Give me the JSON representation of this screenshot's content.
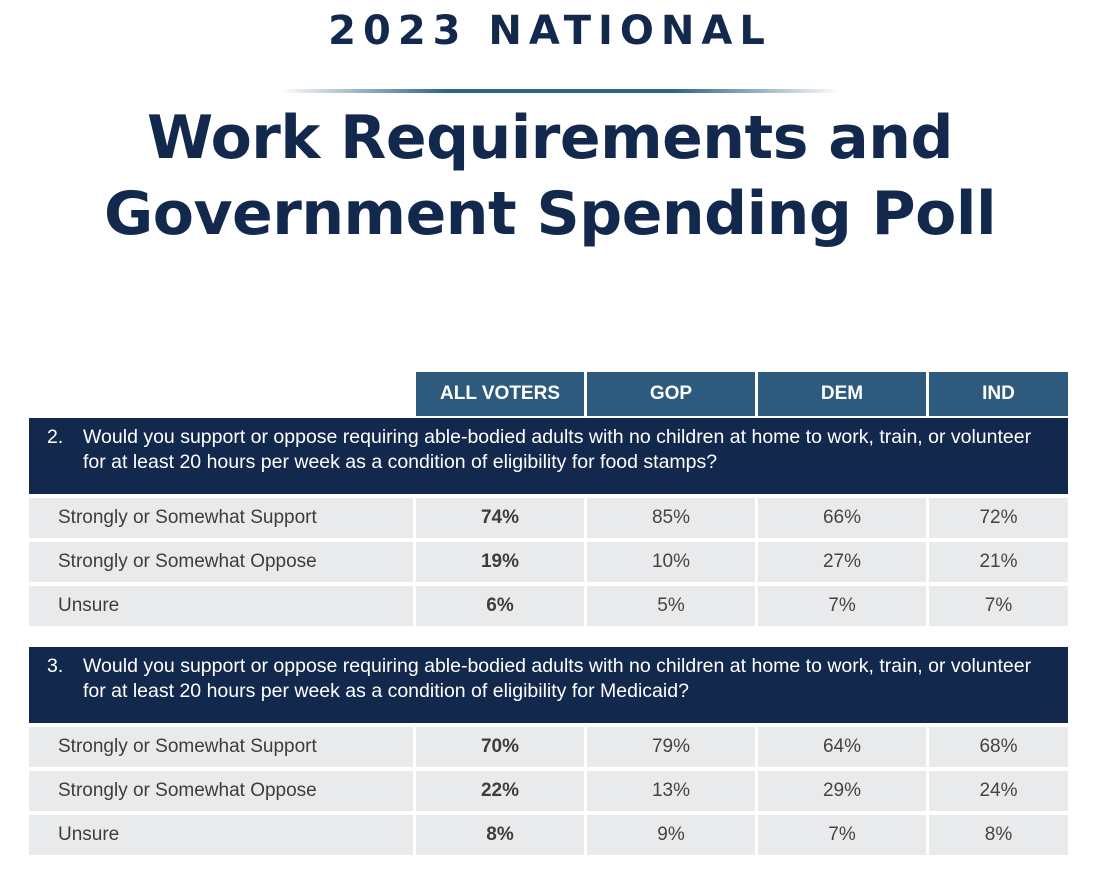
{
  "header": {
    "kicker": "2023 NATIONAL",
    "title_line1": "Work Requirements and",
    "title_line2": "Government Spending Poll"
  },
  "columns": [
    "ALL VOTERS",
    "GOP",
    "DEM",
    "IND"
  ],
  "questions": [
    {
      "number": "2.",
      "text": "Would you support or oppose requiring able-bodied adults with no children at home to work, train, or volunteer for at least 20 hours per week as a condition of eligibility for food stamps?",
      "rows": [
        {
          "label": "Strongly or Somewhat Support",
          "values": [
            "74%",
            "85%",
            "66%",
            "72%"
          ]
        },
        {
          "label": "Strongly or Somewhat Oppose",
          "values": [
            "19%",
            "10%",
            "27%",
            "21%"
          ]
        },
        {
          "label": "Unsure",
          "values": [
            "6%",
            "5%",
            "7%",
            "7%"
          ]
        }
      ]
    },
    {
      "number": "3.",
      "text": "Would you support or oppose requiring able-bodied adults with no children at home to work, train, or volunteer for at least 20 hours per week as a condition of eligibility for Medicaid?",
      "rows": [
        {
          "label": "Strongly or Somewhat Support",
          "values": [
            "70%",
            "79%",
            "64%",
            "68%"
          ]
        },
        {
          "label": "Strongly or Somewhat Oppose",
          "values": [
            "22%",
            "13%",
            "29%",
            "24%"
          ]
        },
        {
          "label": "Unsure",
          "values": [
            "8%",
            "9%",
            "7%",
            "8%"
          ]
        }
      ]
    }
  ],
  "colors": {
    "navy": "#13284d",
    "header_blue": "#2d5a7d",
    "row_bg": "#e9eaeb"
  }
}
